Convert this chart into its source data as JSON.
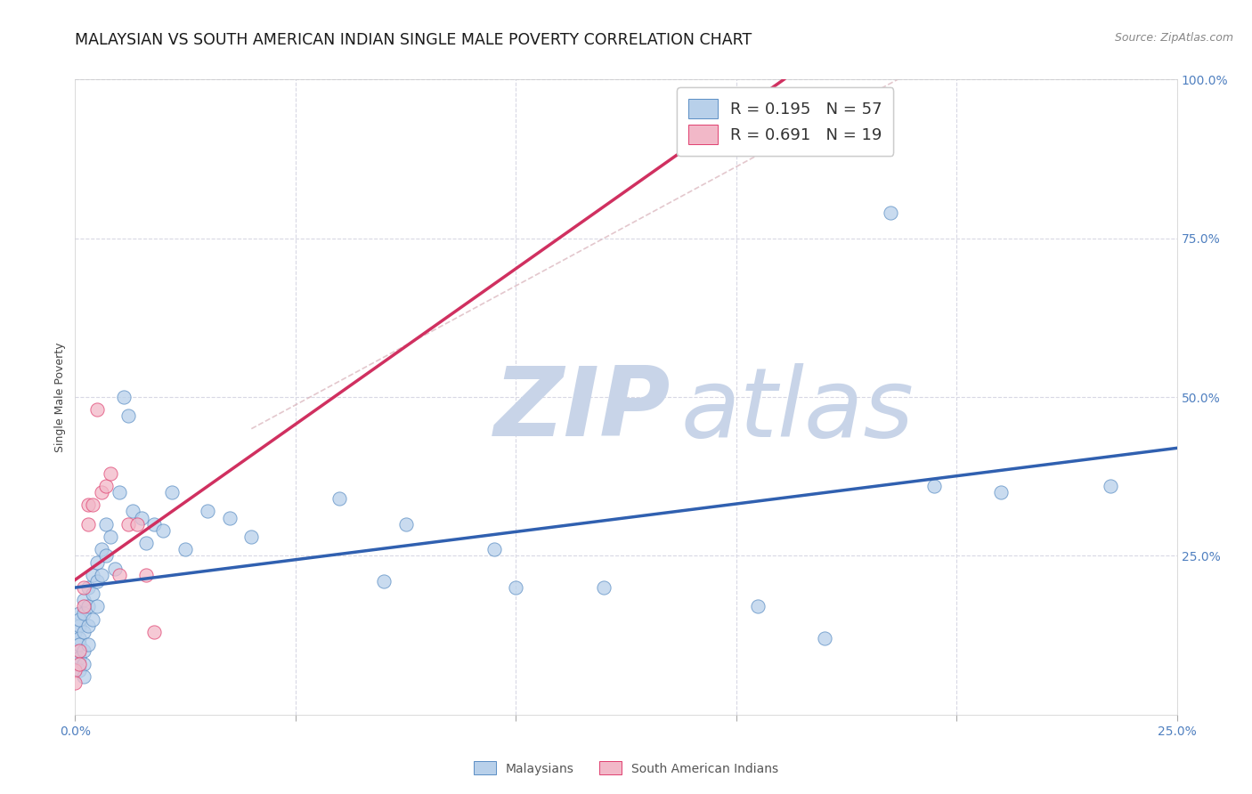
{
  "title": "MALAYSIAN VS SOUTH AMERICAN INDIAN SINGLE MALE POVERTY CORRELATION CHART",
  "source": "Source: ZipAtlas.com",
  "ylabel": "Single Male Poverty",
  "xlim": [
    0,
    0.25
  ],
  "ylim": [
    0,
    1.0
  ],
  "malaysian_color": "#b8d0ea",
  "malaysian_edge": "#5b8ec4",
  "south_american_color": "#f2b8c8",
  "south_american_edge": "#e04070",
  "trend_malaysian_color": "#3060b0",
  "trend_south_american_color": "#d03060",
  "dashed_color": "#d8b0b8",
  "watermark_zip_color": "#c8d4e8",
  "watermark_atlas_color": "#c8d4e8",
  "background_color": "#ffffff",
  "grid_color": "#d8d8e4",
  "right_axis_color": "#5080c0",
  "title_fontsize": 12.5,
  "axis_label_fontsize": 9,
  "tick_fontsize": 10,
  "legend_fontsize": 13,
  "legend_r1": "0.195",
  "legend_n1": "57",
  "legend_r2": "0.691",
  "legend_n2": "19",
  "malaysians_x": [
    0.0,
    0.0,
    0.0,
    0.001,
    0.001,
    0.001,
    0.001,
    0.001,
    0.001,
    0.001,
    0.002,
    0.002,
    0.002,
    0.002,
    0.002,
    0.002,
    0.003,
    0.003,
    0.003,
    0.003,
    0.004,
    0.004,
    0.004,
    0.005,
    0.005,
    0.005,
    0.006,
    0.006,
    0.007,
    0.007,
    0.008,
    0.009,
    0.01,
    0.011,
    0.012,
    0.013,
    0.015,
    0.016,
    0.018,
    0.02,
    0.022,
    0.025,
    0.03,
    0.035,
    0.04,
    0.06,
    0.07,
    0.075,
    0.095,
    0.1,
    0.12,
    0.155,
    0.17,
    0.185,
    0.195,
    0.21,
    0.235
  ],
  "malaysians_y": [
    0.13,
    0.1,
    0.08,
    0.16,
    0.14,
    0.12,
    0.09,
    0.07,
    0.11,
    0.15,
    0.18,
    0.16,
    0.13,
    0.1,
    0.08,
    0.06,
    0.2,
    0.17,
    0.14,
    0.11,
    0.22,
    0.19,
    0.15,
    0.24,
    0.21,
    0.17,
    0.26,
    0.22,
    0.3,
    0.25,
    0.28,
    0.23,
    0.35,
    0.5,
    0.47,
    0.32,
    0.31,
    0.27,
    0.3,
    0.29,
    0.35,
    0.26,
    0.32,
    0.31,
    0.28,
    0.34,
    0.21,
    0.3,
    0.26,
    0.2,
    0.2,
    0.17,
    0.12,
    0.79,
    0.36,
    0.35,
    0.36
  ],
  "south_american_x": [
    0.0,
    0.0,
    0.001,
    0.001,
    0.002,
    0.002,
    0.003,
    0.003,
    0.004,
    0.005,
    0.006,
    0.007,
    0.008,
    0.01,
    0.012,
    0.014,
    0.016,
    0.018,
    0.155
  ],
  "south_american_y": [
    0.07,
    0.05,
    0.1,
    0.08,
    0.2,
    0.17,
    0.33,
    0.3,
    0.33,
    0.48,
    0.35,
    0.36,
    0.38,
    0.22,
    0.3,
    0.3,
    0.22,
    0.13,
    0.97
  ]
}
